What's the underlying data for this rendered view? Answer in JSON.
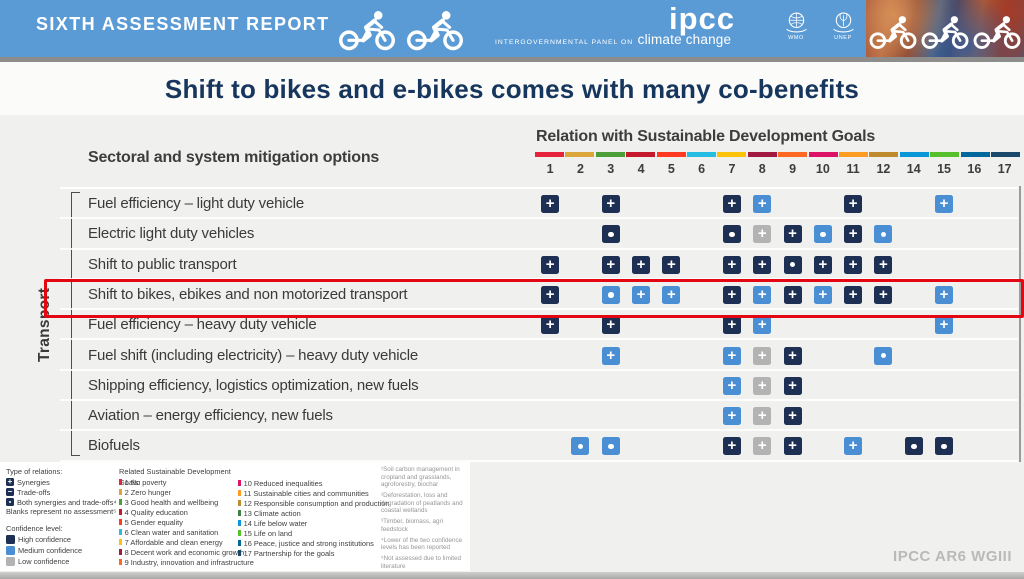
{
  "header": {
    "banner_title": "SIXTH ASSESSMENT REPORT",
    "ipcc_logo_text": "ipcc",
    "ipcc_tagline_small": "INTERGOVERNMENTAL PANEL ON",
    "ipcc_tagline_large": "climate change",
    "org_labels": [
      "WMO",
      "UNEP"
    ]
  },
  "slide_title": "Shift to bikes and e-bikes comes with many co-benefits",
  "colors": {
    "slide_bg": "#f0f0ee",
    "header_blue": "#5b9bd5",
    "header_divider_gray": "#8d8d8b",
    "title_navy": "#17365d",
    "highlight_red": "#e30613",
    "credit_gray": "#b9b9b9"
  },
  "chart_data": {
    "type": "heatmap",
    "left_header": "Sectoral and system mitigation options",
    "right_header": "Relation with Sustainable Development Goals",
    "group_label": "Transport",
    "columns": [
      1,
      2,
      3,
      4,
      5,
      6,
      7,
      8,
      9,
      10,
      11,
      12,
      14,
      15,
      16,
      17
    ],
    "sdg_colors": {
      "1": "#e5243b",
      "2": "#dda63a",
      "3": "#4c9f38",
      "4": "#c5192d",
      "5": "#ff3a21",
      "6": "#26bde2",
      "7": "#fcc30b",
      "8": "#a21942",
      "9": "#fd6925",
      "10": "#dd1367",
      "11": "#fd9d24",
      "12": "#bf8b2e",
      "13": "#3f7e44",
      "14": "#0a97d9",
      "15": "#56c02b",
      "16": "#00689d",
      "17": "#19486a"
    },
    "confidence_colors": {
      "high": "#1e2f54",
      "medium": "#4a8ed4",
      "low": "#b3b3b3"
    },
    "symbol_meanings": {
      "plus": "Synergies",
      "minus": "Trade-offs",
      "dot": "Both synergies and trade-offs"
    },
    "confidence_meanings": {
      "high": "High confidence",
      "medium": "Medium confidence",
      "low": "Low confidence"
    },
    "rows": [
      {
        "label": "Fuel efficiency – light duty vehicle",
        "highlighted": false,
        "cells": [
          [
            1,
            "plus",
            "high"
          ],
          [
            3,
            "plus",
            "high"
          ],
          [
            7,
            "plus",
            "high"
          ],
          [
            8,
            "plus",
            "medium"
          ],
          [
            11,
            "plus",
            "high"
          ],
          [
            15,
            "plus",
            "medium"
          ]
        ]
      },
      {
        "label": "Electric light duty vehicles",
        "highlighted": false,
        "cells": [
          [
            3,
            "dot",
            "high"
          ],
          [
            7,
            "dot",
            "high"
          ],
          [
            8,
            "plus",
            "low"
          ],
          [
            9,
            "plus",
            "high"
          ],
          [
            10,
            "dot",
            "medium"
          ],
          [
            11,
            "plus",
            "high"
          ],
          [
            12,
            "dot",
            "medium"
          ]
        ]
      },
      {
        "label": "Shift to public transport",
        "highlighted": false,
        "cells": [
          [
            1,
            "plus",
            "high"
          ],
          [
            3,
            "plus",
            "high"
          ],
          [
            4,
            "plus",
            "high"
          ],
          [
            5,
            "plus",
            "high"
          ],
          [
            7,
            "plus",
            "high"
          ],
          [
            8,
            "plus",
            "high"
          ],
          [
            9,
            "dot",
            "high"
          ],
          [
            10,
            "plus",
            "high"
          ],
          [
            11,
            "plus",
            "high"
          ],
          [
            12,
            "plus",
            "high"
          ]
        ]
      },
      {
        "label": "Shift to bikes, ebikes and non motorized transport",
        "highlighted": true,
        "cells": [
          [
            1,
            "plus",
            "high"
          ],
          [
            3,
            "dot",
            "medium"
          ],
          [
            4,
            "plus",
            "medium"
          ],
          [
            5,
            "plus",
            "medium"
          ],
          [
            7,
            "plus",
            "high"
          ],
          [
            8,
            "plus",
            "medium"
          ],
          [
            9,
            "plus",
            "high"
          ],
          [
            10,
            "plus",
            "medium"
          ],
          [
            11,
            "plus",
            "high"
          ],
          [
            12,
            "plus",
            "high"
          ],
          [
            15,
            "plus",
            "medium"
          ]
        ]
      },
      {
        "label": "Fuel efficiency – heavy duty vehicle",
        "highlighted": false,
        "cells": [
          [
            1,
            "plus",
            "high"
          ],
          [
            3,
            "plus",
            "high"
          ],
          [
            7,
            "plus",
            "high"
          ],
          [
            8,
            "plus",
            "medium"
          ],
          [
            15,
            "plus",
            "medium"
          ]
        ]
      },
      {
        "label": "Fuel shift (including electricity) – heavy duty vehicle",
        "highlighted": false,
        "cells": [
          [
            3,
            "plus",
            "medium"
          ],
          [
            7,
            "plus",
            "medium"
          ],
          [
            8,
            "plus",
            "low"
          ],
          [
            9,
            "plus",
            "high"
          ],
          [
            12,
            "dot",
            "medium"
          ]
        ]
      },
      {
        "label": "Shipping efficiency, logistics optimization, new fuels",
        "highlighted": false,
        "cells": [
          [
            7,
            "plus",
            "medium"
          ],
          [
            8,
            "plus",
            "low"
          ],
          [
            9,
            "plus",
            "high"
          ]
        ]
      },
      {
        "label": "Aviation – energy efficiency, new fuels",
        "highlighted": false,
        "cells": [
          [
            7,
            "plus",
            "medium"
          ],
          [
            8,
            "plus",
            "low"
          ],
          [
            9,
            "plus",
            "high"
          ]
        ]
      },
      {
        "label": "Biofuels",
        "highlighted": false,
        "cells": [
          [
            2,
            "dot",
            "medium"
          ],
          [
            3,
            "dot",
            "medium"
          ],
          [
            7,
            "plus",
            "high"
          ],
          [
            8,
            "plus",
            "low"
          ],
          [
            9,
            "plus",
            "high"
          ],
          [
            11,
            "plus",
            "medium"
          ],
          [
            14,
            "dot",
            "high"
          ],
          [
            15,
            "dot",
            "high"
          ]
        ]
      }
    ]
  },
  "legend": {
    "type_header": "Type of relations:",
    "type_items": [
      {
        "symbol": "plus",
        "label": "Synergies"
      },
      {
        "symbol": "minus",
        "label": "Trade-offs"
      },
      {
        "symbol": "dot",
        "label": "Both synergies and trade-offs⁴"
      }
    ],
    "type_note": "Blanks represent no assessment⁵",
    "confidence_header": "Confidence level:",
    "confidence_items": [
      {
        "level": "high",
        "label": "High confidence"
      },
      {
        "level": "medium",
        "label": "Medium confidence"
      },
      {
        "level": "low",
        "label": "Low confidence"
      }
    ],
    "sdg_header": "Related Sustainable Development Goals:",
    "sdg_goals": [
      {
        "n": 1,
        "label": "No poverty"
      },
      {
        "n": 2,
        "label": "Zero hunger"
      },
      {
        "n": 3,
        "label": "Good health and wellbeing"
      },
      {
        "n": 4,
        "label": "Quality education"
      },
      {
        "n": 5,
        "label": "Gender equality"
      },
      {
        "n": 6,
        "label": "Clean water and sanitation"
      },
      {
        "n": 7,
        "label": "Affordable and clean energy"
      },
      {
        "n": 8,
        "label": "Decent work and economic growth"
      },
      {
        "n": 9,
        "label": "Industry, innovation and infrastructure"
      },
      {
        "n": 10,
        "label": "Reduced inequalities"
      },
      {
        "n": 11,
        "label": "Sustainable cities and communities"
      },
      {
        "n": 12,
        "label": "Responsible consumption and production"
      },
      {
        "n": 13,
        "label": "Climate action"
      },
      {
        "n": 14,
        "label": "Life below water"
      },
      {
        "n": 15,
        "label": "Life on land"
      },
      {
        "n": 16,
        "label": "Peace, justice and strong institutions"
      },
      {
        "n": 17,
        "label": "Partnership for the goals"
      }
    ],
    "footnotes": [
      "¹Soil carbon management in cropland and grasslands, agroforestry, biochar",
      "²Deforestation, loss and degradation of peatlands and coastal wetlands",
      "³Timber, biomass, agri feedstock",
      "⁴Lower of the two confidence levels has been reported",
      "⁵Not assessed due to limited literature"
    ]
  },
  "credit": "IPCC AR6 WGIII"
}
